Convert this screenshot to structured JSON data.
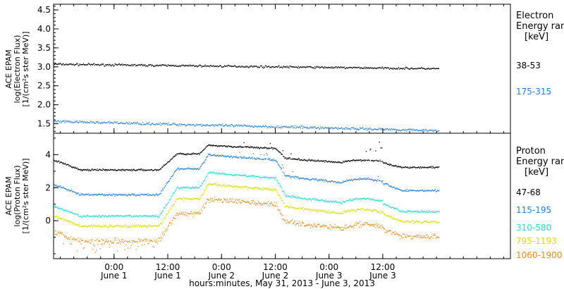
{
  "chart_data": [
    {
      "type": "scatter",
      "panel": "electron",
      "ylabel_lines": [
        "ACE EPAM",
        "log(Electron Flux)",
        "[1/(cm²s ster MeV)]"
      ],
      "yticks": [
        "1.5",
        "2.0",
        "2.5",
        "3.0",
        "3.5",
        "4.0",
        "4.5"
      ],
      "ylim": [
        1.25,
        4.65
      ],
      "legend_title_lines": [
        "Electron",
        "Energy range",
        "[keV]"
      ],
      "series": [
        {
          "name": "38-53",
          "color": "#000000",
          "level": 3.08,
          "end": 2.96,
          "noise": 0.04,
          "spikes": 0
        },
        {
          "name": "175-315",
          "color": "#1e7fe0",
          "level": 1.57,
          "end": 1.33,
          "noise": 0.05,
          "spikes": 0
        }
      ]
    },
    {
      "type": "scatter",
      "panel": "proton",
      "ylabel_lines": [
        "ACE EPAM",
        "log(Proton Flux)",
        "[1/(cm²s ster MeV)]"
      ],
      "yticks": [
        "0",
        "2",
        "4"
      ],
      "ylim": [
        -2.3,
        5.3
      ],
      "legend_title_lines": [
        "Proton",
        "Energy range",
        "[keV]"
      ],
      "series": [
        {
          "name": "47-68",
          "color": "#000000",
          "base": 3.1,
          "shift": 1.3,
          "noise": 0.08
        },
        {
          "name": "115-195",
          "color": "#1e7fe0",
          "base": 1.6,
          "shift": 2.1,
          "noise": 0.1
        },
        {
          "name": "310-580",
          "color": "#22ddd0",
          "base": 0.3,
          "shift": 2.3,
          "noise": 0.1
        },
        {
          "name": "795-1193",
          "color": "#d4e000",
          "base": -0.3,
          "shift": 2.2,
          "noise": 0.12
        },
        {
          "name": "1060-1900",
          "color": "#f08a14",
          "base": -1.2,
          "shift": 2.2,
          "noise": 0.25
        }
      ]
    }
  ],
  "x_axis": {
    "ticks": [
      {
        "time": "0:00",
        "day": "June 1"
      },
      {
        "time": "12:00",
        "day": "June 1"
      },
      {
        "time": "0:00",
        "day": "June 2"
      },
      {
        "time": "12:00",
        "day": "June 2"
      },
      {
        "time": "0:00",
        "day": "June 3"
      },
      {
        "time": "12:00",
        "day": "June 3"
      }
    ],
    "label": "hours:minutes, May 31, 2013 - June  3, 2013",
    "range_hours": [
      -13.5,
      88.5
    ],
    "data_end_hours": 72.5
  }
}
